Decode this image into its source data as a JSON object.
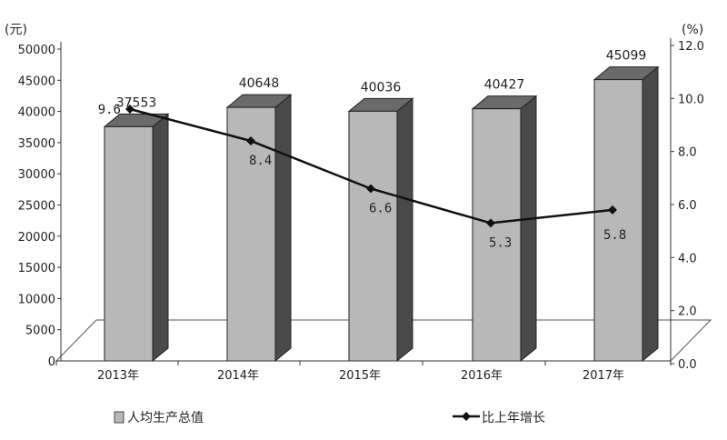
{
  "chart_data": {
    "type": "bar",
    "categories": [
      "2013年",
      "2014年",
      "2015年",
      "2016年",
      "2017年"
    ],
    "series": [
      {
        "name": "人均生产总值",
        "type": "bar",
        "axis": "left",
        "values": [
          37553,
          40648,
          40036,
          40427,
          45099
        ],
        "labels": [
          "37553",
          "40648",
          "40036",
          "40427",
          "45099"
        ]
      },
      {
        "name": "比上年增长",
        "type": "line",
        "axis": "right",
        "values": [
          9.6,
          8.4,
          6.6,
          5.3,
          5.8
        ],
        "labels": [
          "9.6",
          "8.4",
          "6.6",
          "5.3",
          "5.8"
        ]
      }
    ],
    "left_axis": {
      "unit": "(元)",
      "min": 0,
      "max": 50000,
      "step": 5000,
      "ticks": [
        "0",
        "5000",
        "10000",
        "15000",
        "20000",
        "25000",
        "30000",
        "35000",
        "40000",
        "45000",
        "50000"
      ]
    },
    "right_axis": {
      "unit": "(%)",
      "min": 0,
      "max": 12,
      "step": 2,
      "ticks": [
        "0.0",
        "2.0",
        "4.0",
        "6.0",
        "8.0",
        "10.0",
        "12.0"
      ]
    },
    "legend_position": "bottom",
    "grid": false,
    "style": "3d",
    "colors": {
      "bar_front": "#b8b8b8",
      "bar_top": "#6a6a6a",
      "bar_side": "#4a4a4a",
      "line": "#111111"
    }
  }
}
